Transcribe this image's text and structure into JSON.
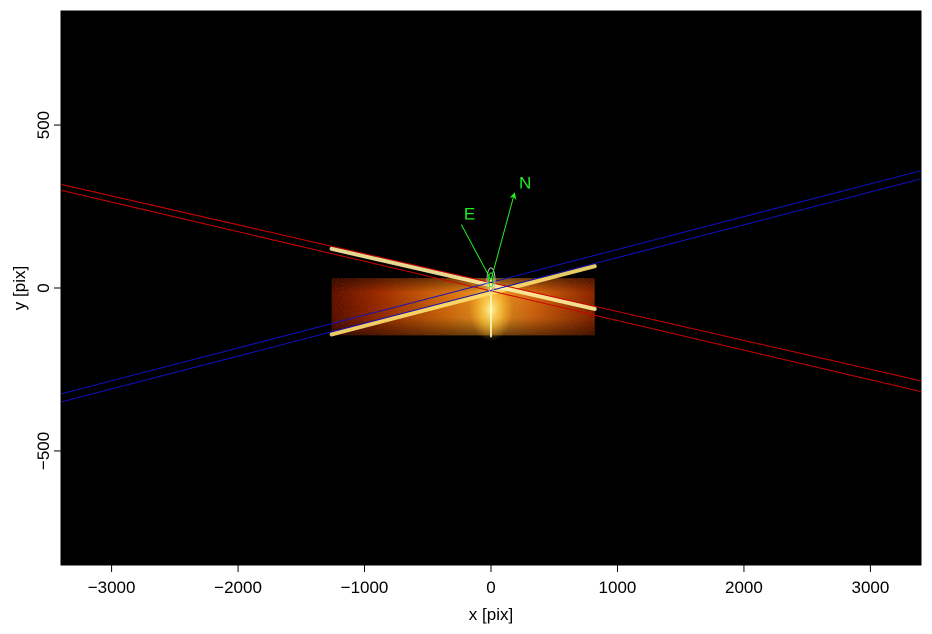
{
  "chart_data": {
    "type": "image",
    "xlabel": "x [pix]",
    "ylabel": "y [pix]",
    "xlim": [
      -3400,
      3400
    ],
    "ylim": [
      -850,
      850
    ],
    "x_ticks": [
      {
        "value": -3000,
        "label": "−3000"
      },
      {
        "value": -2000,
        "label": "−2000"
      },
      {
        "value": -1000,
        "label": "−1000"
      },
      {
        "value": 0,
        "label": "0"
      },
      {
        "value": 1000,
        "label": "1000"
      },
      {
        "value": 2000,
        "label": "2000"
      },
      {
        "value": 3000,
        "label": "3000"
      }
    ],
    "y_ticks": [
      {
        "value": -500,
        "label": "−500"
      },
      {
        "value": 0,
        "label": "0"
      },
      {
        "value": 500,
        "label": "500"
      }
    ],
    "image_region": {
      "x": [
        -1260,
        820
      ],
      "y": [
        -145,
        30
      ]
    },
    "slit_traces": [
      {
        "color": "#d00000",
        "x0": -3400,
        "y0": 318,
        "x1": 3400,
        "y1": -285
      },
      {
        "color": "#d00000",
        "x0": -3400,
        "y0": 300,
        "x1": 3400,
        "y1": -318
      },
      {
        "color": "#1010c0",
        "x0": -3400,
        "y0": -325,
        "x1": 3400,
        "y1": 360
      },
      {
        "color": "#1010c0",
        "x0": -3400,
        "y0": -350,
        "x1": 3400,
        "y1": 335
      }
    ],
    "compass": {
      "color": "#22ee22",
      "origin": {
        "x": 0,
        "y": 25
      },
      "N": {
        "label": "N",
        "x": 185,
        "y": 290,
        "label_x": 270,
        "label_y": 305
      },
      "E": {
        "label": "E",
        "x": -235,
        "y": 195,
        "label_x": -170,
        "label_y": 210
      }
    }
  }
}
